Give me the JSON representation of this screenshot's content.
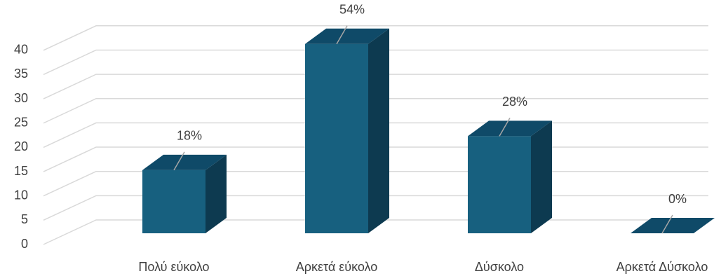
{
  "chart_data": {
    "type": "bar3d",
    "categories": [
      "Πολύ εύκολο",
      "Αρκετά εύκολο",
      "Δύσκολο",
      "Αρκετά Δύσκολο"
    ],
    "values": [
      13,
      39,
      20,
      0
    ],
    "data_labels": [
      "18%",
      "54%",
      "28%",
      "0%"
    ],
    "color": "#17607f",
    "ylim": [
      0,
      45
    ],
    "yticks": [
      0,
      5,
      10,
      15,
      20,
      25,
      30,
      35,
      40
    ],
    "grid": true
  }
}
